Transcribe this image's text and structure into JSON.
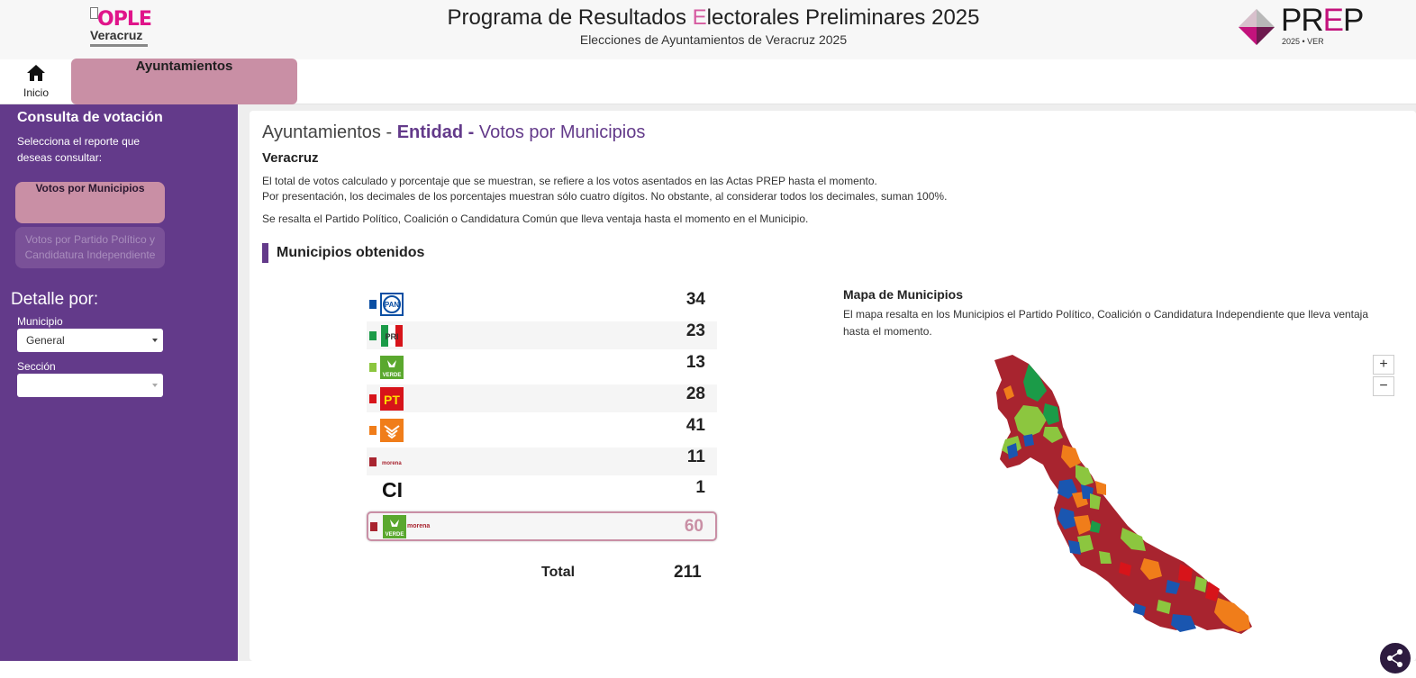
{
  "header": {
    "title_part1": "Programa de Resultados ",
    "title_highlight": "E",
    "title_part2": "lectorales Preliminares 2025",
    "subtitle": "Elecciones de Ayuntamientos de Veracruz 2025",
    "ople_logo": {
      "word": "OPLE",
      "sub": "Veracruz"
    },
    "prep_logo": {
      "p": "PR",
      "e": "E",
      "p2": "P",
      "year": "2025  •  VER"
    }
  },
  "nav": {
    "home_label": "Inicio",
    "tab_label": "Ayuntamientos"
  },
  "sidebar": {
    "title": "Consulta de votación",
    "description": "Selecciona el reporte que deseas consultar:",
    "btn_votos_municipios": "Votos por Municipios",
    "btn_votos_partido": "Votos por Partido Político y Candidatura Independiente",
    "detail_title": "Detalle por:",
    "municipio_label": "Municipio",
    "municipio_value": "General",
    "seccion_label": "Sección",
    "seccion_value": ""
  },
  "main": {
    "heading_part1": "Ayuntamientos - ",
    "heading_part2": "Entidad - ",
    "heading_part3": "Votos por Municipios",
    "entity": "Veracruz",
    "note1": "El total de votos calculado y porcentaje que se muestran, se refiere a los votos asentados en las Actas PREP hasta el momento.",
    "note2": "Por presentación, los decimales de los porcentajes muestran sólo cuatro dígitos. No obstante, al considerar todos los decimales, suman 100%.",
    "note3": "Se resalta el Partido Político, Coalición o Candidatura Común que lleva ventaja hasta el momento en el Municipio.",
    "section_title": "Municipios obtenidos",
    "results": [
      {
        "party": "PAN",
        "logo_text": "PAN",
        "color": "#0b4fa3",
        "count": "34"
      },
      {
        "party": "PRI",
        "logo_text": "PRI",
        "color": "#1b9b48",
        "count": "23"
      },
      {
        "party": "VERDE",
        "logo_text": "VERDE",
        "color": "#8cc63f",
        "count": "13"
      },
      {
        "party": "PT",
        "logo_text": "PT",
        "color": "#d7141a",
        "count": "28"
      },
      {
        "party": "MC",
        "logo_text": "",
        "color": "#f07d1a",
        "count": "41"
      },
      {
        "party": "MORENA",
        "logo_text": "morena",
        "color": "#a8242f",
        "count": "11"
      },
      {
        "party": "CI",
        "logo_text": "CI",
        "color": "",
        "count": "1"
      },
      {
        "party": "VERDE-MORENA",
        "logo_text": "morena",
        "color": "#a8242f",
        "count": "60"
      }
    ],
    "total_label": "Total",
    "total_value": "211"
  },
  "map": {
    "title": "Mapa de Municipios",
    "description": "El mapa resalta en los Municipios el Partido Político, Coalición o Candidatura Independiente que lleva ventaja hasta el momento.",
    "zoom_in": "+",
    "zoom_out": "−",
    "colors": {
      "morena": "#a8242f",
      "verde": "#8cc63f",
      "pri": "#1b9b48",
      "pan": "#1a56b0",
      "mc": "#f07d1a",
      "pt": "#d7141a"
    }
  }
}
